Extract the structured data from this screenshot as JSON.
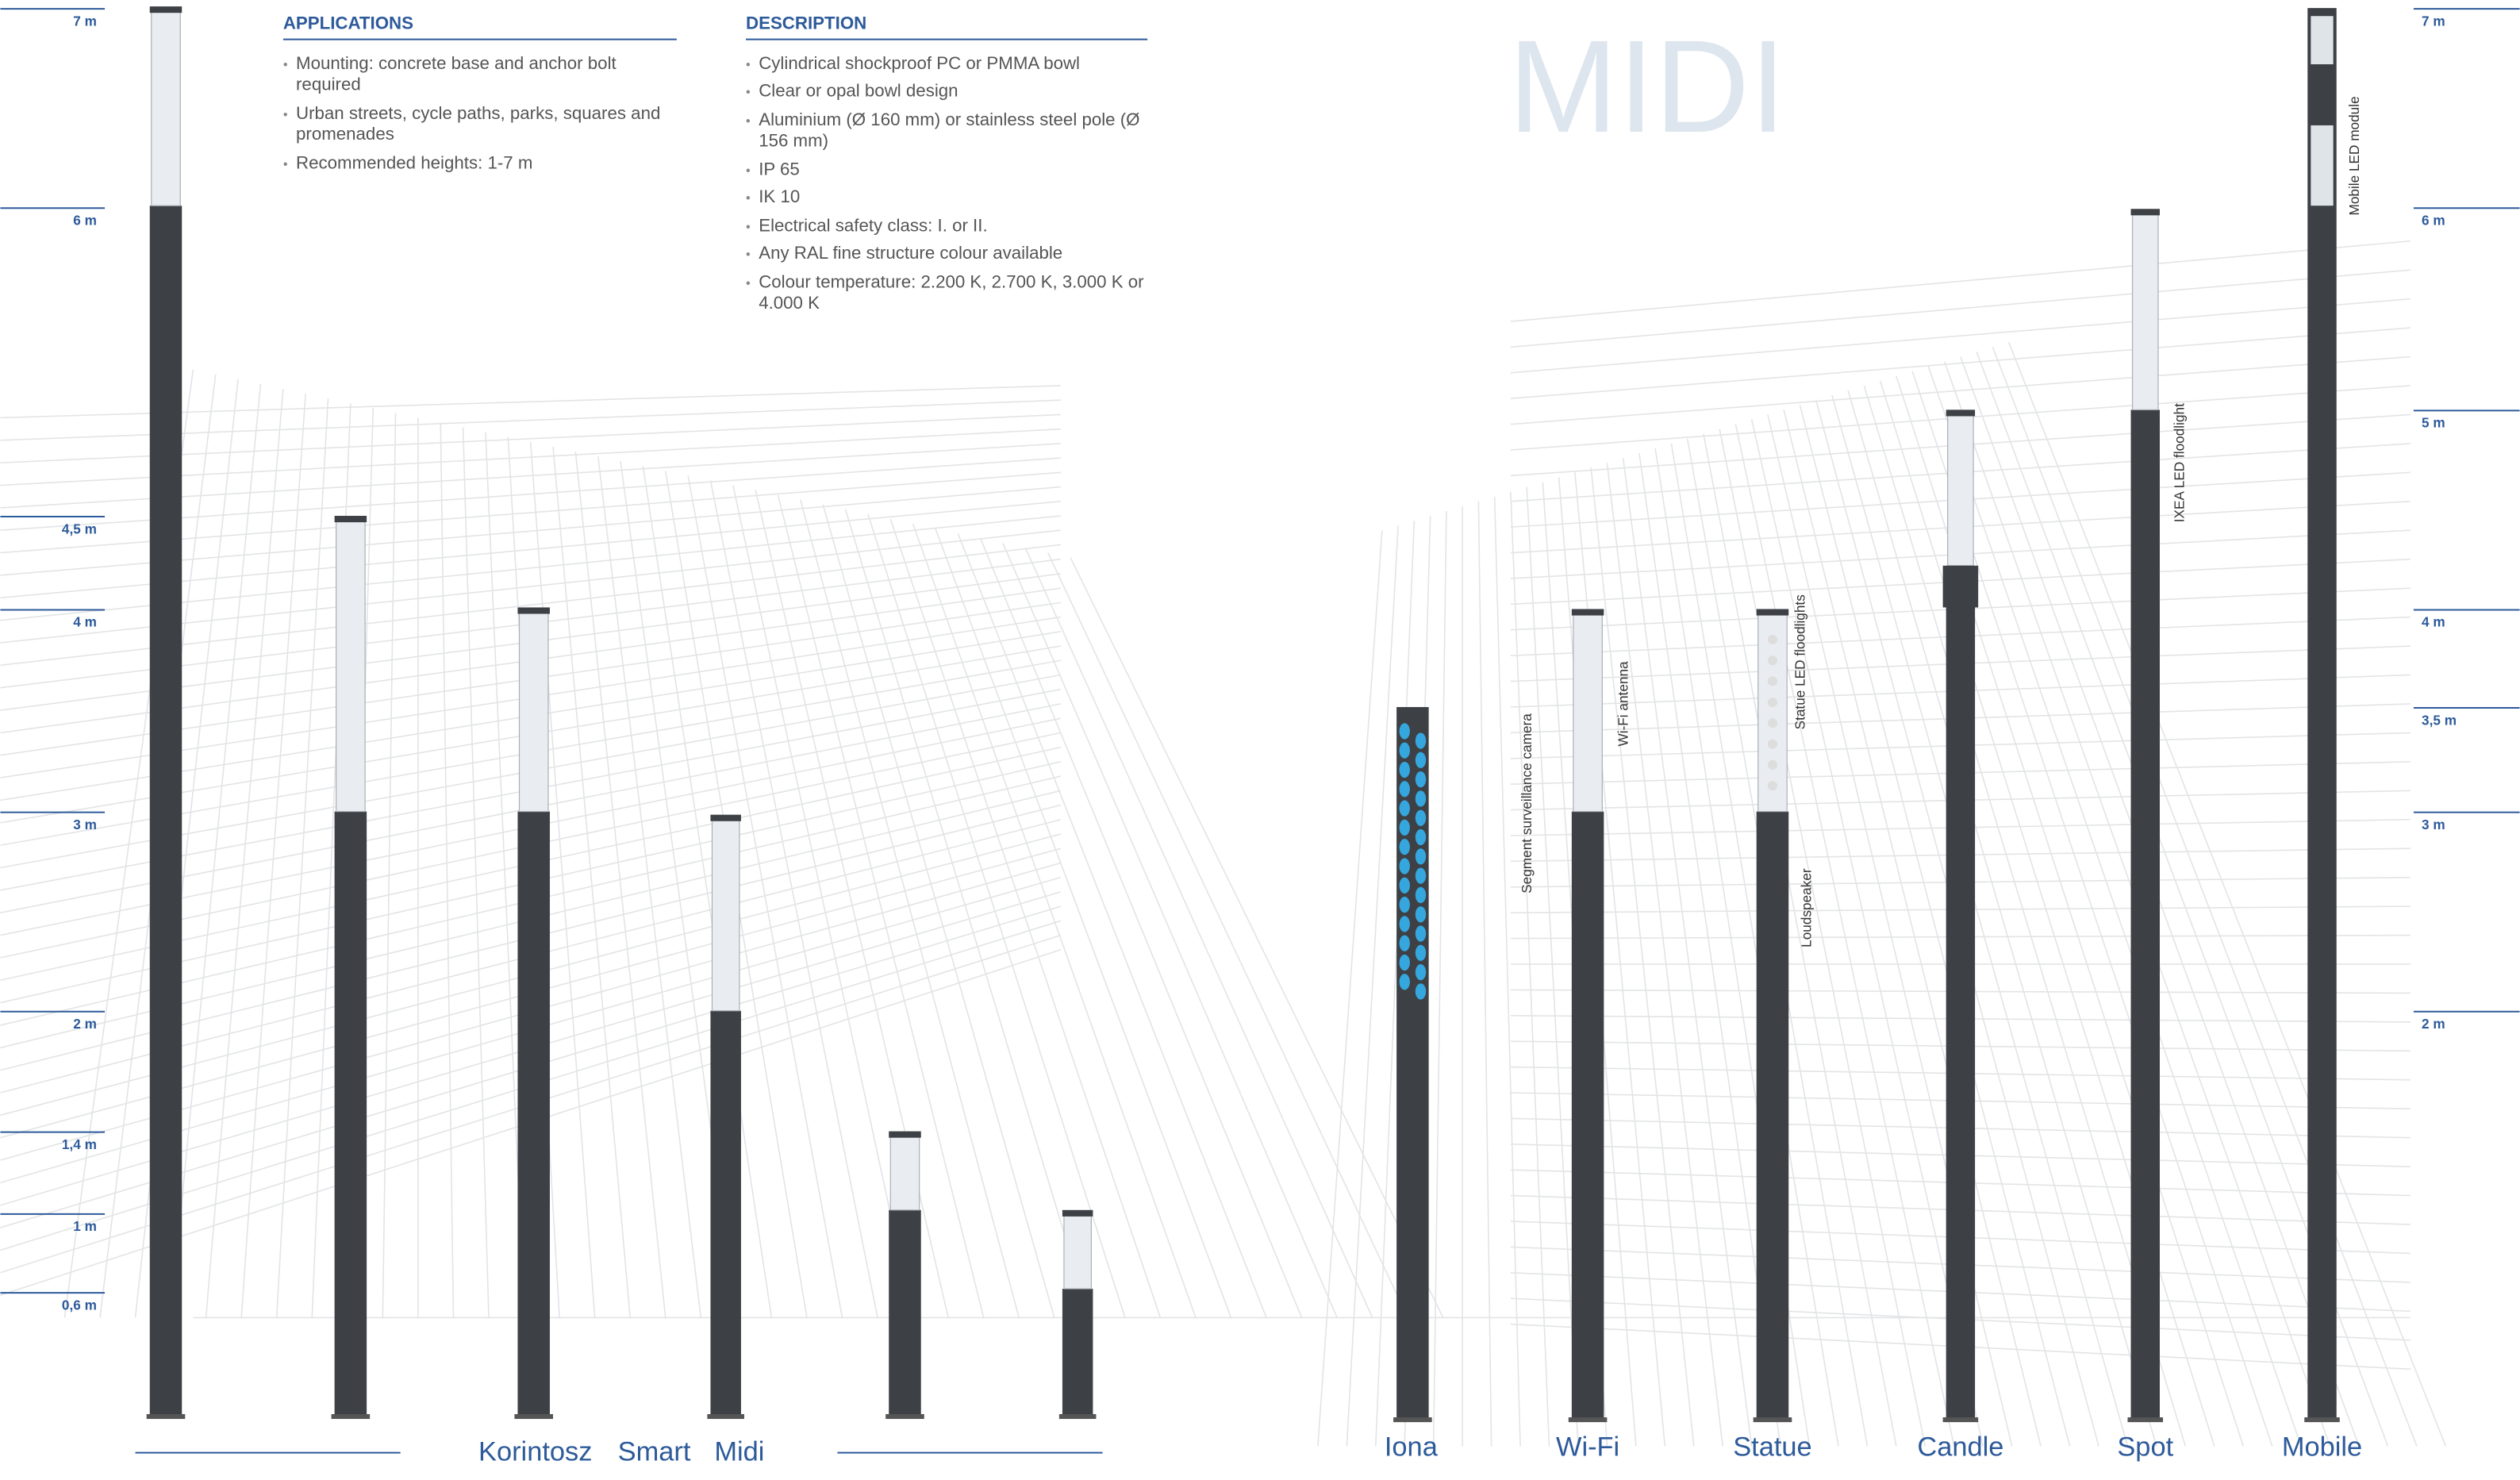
{
  "title": "MIDI",
  "applications": {
    "heading": "APPLICATIONS",
    "items": [
      "Mounting: concrete base and anchor bolt required",
      "Urban streets, cycle paths, parks, squares and promenades",
      "Recommended heights: 1-7 m"
    ]
  },
  "description": {
    "heading": "DESCRIPTION",
    "items": [
      "Cylindrical shockproof PC or PMMA bowl",
      "Clear or opal bowl design",
      "Aluminium (Ø 160 mm) or stainless steel pole (Ø 156 mm)",
      "IP 65",
      "IK 10",
      "Electrical safety class: I. or II.",
      "Any RAL fine structure colour available",
      "Colour temperature: 2.200 K, 2.700 K, 3.000 K or 4.000 K"
    ]
  },
  "scale_left": [
    "7 m",
    "6 m",
    "4,5 m",
    "4 m",
    "3 m",
    "2 m",
    "1,4 m",
    "1 m",
    "0,6 m"
  ],
  "scale_right": [
    "7 m",
    "6 m",
    "5 m",
    "4 m",
    "3,5 m",
    "3 m",
    "2 m"
  ],
  "products": [
    "Korintosz",
    "Smart",
    "Midi",
    "Iona",
    "Wi-Fi",
    "Statue",
    "Candle",
    "Spot",
    "Mobile"
  ],
  "callouts": [
    "Segment surveillance camera",
    "Wi-Fi antenna",
    "Statue LED floodlights",
    "Loudspeaker",
    "IXEA LED floodlight",
    "Mobile LED module"
  ]
}
